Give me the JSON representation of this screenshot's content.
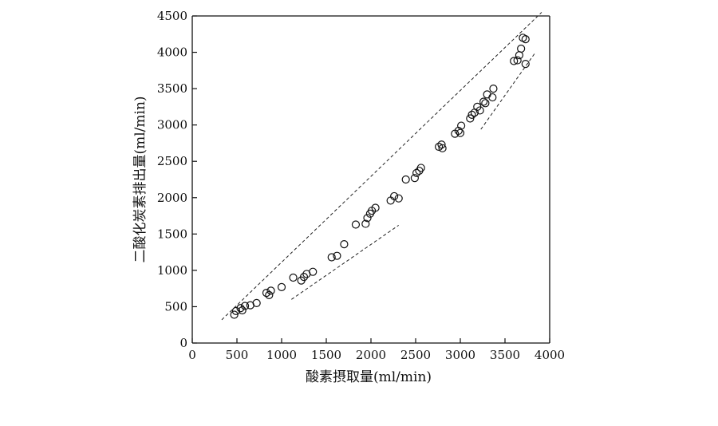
{
  "chart_data": {
    "type": "scatter",
    "xlabel": "酸素摂取量(ml/min)",
    "ylabel": "二酸化炭素排出量(ml/min)",
    "xlim": [
      0,
      4000
    ],
    "ylim": [
      0,
      4500
    ],
    "x_ticks": [
      "0",
      "500",
      "1000",
      "1500",
      "2000",
      "2500",
      "3000",
      "3500",
      "4000"
    ],
    "y_ticks": [
      "0",
      "500",
      "1000",
      "1500",
      "2000",
      "2500",
      "3000",
      "3500",
      "4000",
      "4500"
    ],
    "grid": false,
    "legend": "none",
    "points": [
      {
        "x": 470,
        "y": 390
      },
      {
        "x": 490,
        "y": 440
      },
      {
        "x": 540,
        "y": 480
      },
      {
        "x": 560,
        "y": 450
      },
      {
        "x": 590,
        "y": 510
      },
      {
        "x": 650,
        "y": 520
      },
      {
        "x": 720,
        "y": 550
      },
      {
        "x": 830,
        "y": 690
      },
      {
        "x": 860,
        "y": 660
      },
      {
        "x": 880,
        "y": 720
      },
      {
        "x": 1000,
        "y": 770
      },
      {
        "x": 1130,
        "y": 900
      },
      {
        "x": 1220,
        "y": 860
      },
      {
        "x": 1250,
        "y": 910
      },
      {
        "x": 1280,
        "y": 950
      },
      {
        "x": 1350,
        "y": 980
      },
      {
        "x": 1560,
        "y": 1180
      },
      {
        "x": 1620,
        "y": 1200
      },
      {
        "x": 1700,
        "y": 1360
      },
      {
        "x": 1830,
        "y": 1630
      },
      {
        "x": 1940,
        "y": 1640
      },
      {
        "x": 1960,
        "y": 1720
      },
      {
        "x": 1990,
        "y": 1780
      },
      {
        "x": 2010,
        "y": 1820
      },
      {
        "x": 2050,
        "y": 1860
      },
      {
        "x": 2220,
        "y": 1960
      },
      {
        "x": 2260,
        "y": 2020
      },
      {
        "x": 2310,
        "y": 1990
      },
      {
        "x": 2390,
        "y": 2250
      },
      {
        "x": 2490,
        "y": 2270
      },
      {
        "x": 2510,
        "y": 2340
      },
      {
        "x": 2540,
        "y": 2370
      },
      {
        "x": 2560,
        "y": 2410
      },
      {
        "x": 2760,
        "y": 2700
      },
      {
        "x": 2790,
        "y": 2730
      },
      {
        "x": 2800,
        "y": 2680
      },
      {
        "x": 2940,
        "y": 2880
      },
      {
        "x": 2980,
        "y": 2920
      },
      {
        "x": 3000,
        "y": 2890
      },
      {
        "x": 3010,
        "y": 2990
      },
      {
        "x": 3110,
        "y": 3090
      },
      {
        "x": 3130,
        "y": 3140
      },
      {
        "x": 3160,
        "y": 3170
      },
      {
        "x": 3190,
        "y": 3250
      },
      {
        "x": 3220,
        "y": 3200
      },
      {
        "x": 3260,
        "y": 3320
      },
      {
        "x": 3280,
        "y": 3300
      },
      {
        "x": 3300,
        "y": 3420
      },
      {
        "x": 3360,
        "y": 3380
      },
      {
        "x": 3370,
        "y": 3500
      },
      {
        "x": 3600,
        "y": 3880
      },
      {
        "x": 3640,
        "y": 3890
      },
      {
        "x": 3660,
        "y": 3960
      },
      {
        "x": 3680,
        "y": 4050
      },
      {
        "x": 3700,
        "y": 4200
      },
      {
        "x": 3730,
        "y": 4180
      },
      {
        "x": 3730,
        "y": 3840
      }
    ],
    "reference_lines": [
      {
        "x": [
          330,
          3910
        ],
        "y": [
          320,
          4550
        ]
      },
      {
        "x": [
          1110,
          2310
        ],
        "y": [
          600,
          1620
        ]
      },
      {
        "x": [
          3230,
          3830
        ],
        "y": [
          2940,
          3980
        ]
      }
    ]
  }
}
